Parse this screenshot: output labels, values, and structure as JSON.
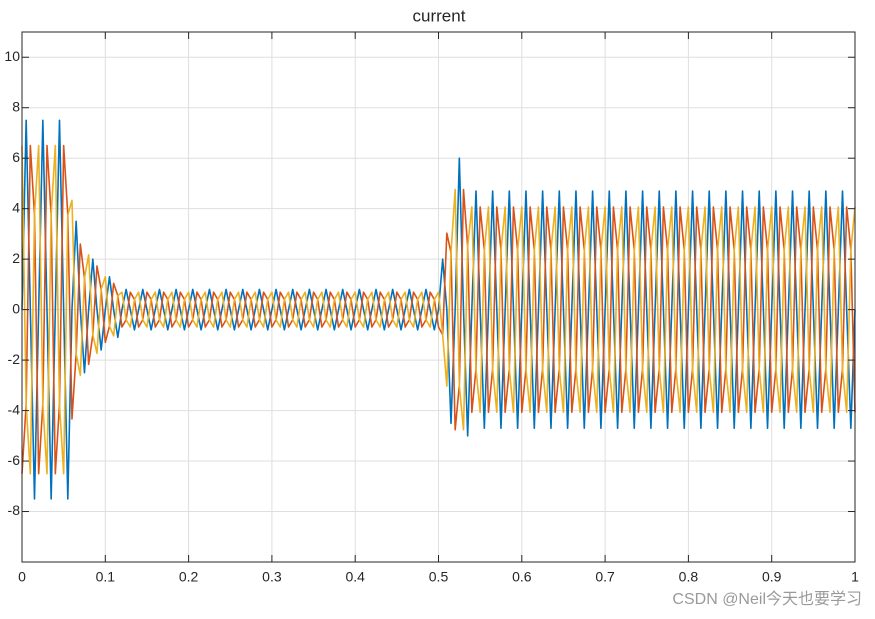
{
  "chart_data": {
    "type": "line",
    "title": "current",
    "x": [
      0,
      0.005,
      0.01,
      0.015,
      0.02,
      0.025,
      0.03,
      0.035,
      0.04,
      0.045,
      0.05,
      0.055,
      0.06,
      0.065,
      0.07,
      0.075,
      0.08,
      0.085,
      0.09,
      0.095,
      0.1,
      0.105,
      0.11,
      0.115,
      0.12,
      0.125,
      0.13,
      0.135,
      0.14,
      0.145,
      0.15,
      0.155,
      0.16,
      0.165,
      0.17,
      0.175,
      0.18,
      0.185,
      0.19,
      0.195,
      0.2,
      0.205,
      0.21,
      0.215,
      0.22,
      0.225,
      0.23,
      0.235,
      0.24,
      0.245,
      0.25,
      0.255,
      0.26,
      0.265,
      0.27,
      0.275,
      0.28,
      0.285,
      0.29,
      0.295,
      0.3,
      0.305,
      0.31,
      0.315,
      0.32,
      0.325,
      0.33,
      0.335,
      0.34,
      0.345,
      0.35,
      0.355,
      0.36,
      0.365,
      0.37,
      0.375,
      0.38,
      0.385,
      0.39,
      0.395,
      0.4,
      0.405,
      0.41,
      0.415,
      0.42,
      0.425,
      0.43,
      0.435,
      0.44,
      0.445,
      0.45,
      0.455,
      0.46,
      0.465,
      0.47,
      0.475,
      0.48,
      0.485,
      0.49,
      0.495,
      0.5,
      0.505,
      0.51,
      0.515,
      0.52,
      0.525,
      0.53,
      0.535,
      0.54,
      0.545,
      0.55,
      0.555,
      0.56,
      0.565,
      0.57,
      0.575,
      0.58,
      0.585,
      0.59,
      0.595,
      0.6,
      0.605,
      0.61,
      0.615,
      0.62,
      0.625,
      0.63,
      0.635,
      0.64,
      0.645,
      0.65,
      0.655,
      0.66,
      0.665,
      0.67,
      0.675,
      0.68,
      0.685,
      0.69,
      0.695,
      0.7,
      0.705,
      0.71,
      0.715,
      0.72,
      0.725,
      0.73,
      0.735,
      0.74,
      0.745,
      0.75,
      0.755,
      0.76,
      0.765,
      0.77,
      0.775,
      0.78,
      0.785,
      0.79,
      0.795,
      0.8,
      0.805,
      0.81,
      0.815,
      0.82,
      0.825,
      0.83,
      0.835,
      0.84,
      0.845,
      0.85,
      0.855,
      0.86,
      0.865,
      0.87,
      0.875,
      0.88,
      0.885,
      0.89,
      0.895,
      0.9,
      0.905,
      0.91,
      0.915,
      0.92,
      0.925,
      0.93,
      0.935,
      0.94,
      0.945,
      0.95,
      0.955,
      0.96,
      0.965,
      0.97,
      0.975,
      0.98,
      0.985,
      0.99,
      0.995,
      1
    ],
    "series": [
      {
        "color": "#0072BD",
        "values": [
          0,
          7.5,
          0,
          -7.5,
          0,
          7.5,
          0,
          -7.5,
          0,
          7.5,
          0,
          -7.5,
          0,
          3.5,
          0,
          -2.5,
          0,
          2,
          0,
          -1.6,
          0,
          1.3,
          0,
          -1.1,
          0,
          0.8,
          0,
          -0.8,
          0,
          0.8,
          0,
          -0.8,
          0,
          0.8,
          0,
          -0.8,
          0,
          0.8,
          0,
          -0.8,
          0,
          0.8,
          0,
          -0.8,
          0,
          0.8,
          0,
          -0.8,
          0,
          0.8,
          0,
          -0.8,
          0,
          0.8,
          0,
          -0.8,
          0,
          0.8,
          0,
          -0.8,
          0,
          0.8,
          0,
          -0.8,
          0,
          0.8,
          0,
          -0.8,
          0,
          0.8,
          0,
          -0.8,
          0,
          0.8,
          0,
          -0.8,
          0,
          0.8,
          0,
          -0.8,
          0,
          0.8,
          0,
          -0.8,
          0,
          0.8,
          0,
          -0.8,
          0,
          0.8,
          0,
          -0.8,
          0,
          0.8,
          0,
          -0.8,
          0,
          0.8,
          0,
          -0.8,
          0,
          2,
          0,
          -4.5,
          0,
          6,
          0,
          -5,
          0,
          4.7,
          0,
          -4.7,
          0,
          4.7,
          0,
          -4.7,
          0,
          4.7,
          0,
          -4.7,
          0,
          4.7,
          0,
          -4.7,
          0,
          4.7,
          0,
          -4.7,
          0,
          4.7,
          0,
          -4.7,
          0,
          4.7,
          0,
          -4.7,
          0,
          4.7,
          0,
          -4.7,
          0,
          4.7,
          0,
          -4.7,
          0,
          4.7,
          0,
          -4.7,
          0,
          4.7,
          0,
          -4.7,
          0,
          4.7,
          0,
          -4.7,
          0,
          4.7,
          0,
          -4.7,
          0,
          4.7,
          0,
          -4.7,
          0,
          4.7,
          0,
          -4.7,
          0,
          4.7,
          0,
          -4.7,
          0,
          4.7,
          0,
          -4.7,
          0,
          4.7,
          0,
          -4.7,
          0,
          4.7,
          0,
          -4.7,
          0,
          4.7,
          0,
          -4.7,
          0,
          4.7,
          0,
          -4.7,
          0,
          4.7,
          0,
          -4.7,
          0,
          4.7,
          0,
          -4.7,
          0
        ]
      },
      {
        "color": "#D95319",
        "values": [
          -6.5,
          -3.75,
          6.5,
          3.75,
          -6.5,
          -3.75,
          6.5,
          3.75,
          -6.5,
          -3.75,
          6.5,
          3.75,
          -4.33,
          -1.75,
          2.6,
          1.25,
          -2.17,
          -1,
          1.73,
          0.8,
          -1.3,
          -0.65,
          1.04,
          0.55,
          -0.69,
          -0.4,
          0.69,
          0.4,
          -0.69,
          -0.4,
          0.69,
          0.4,
          -0.69,
          -0.4,
          0.69,
          0.4,
          -0.69,
          -0.4,
          0.69,
          0.4,
          -0.69,
          -0.4,
          0.69,
          0.4,
          -0.69,
          -0.4,
          0.69,
          0.4,
          -0.69,
          -0.4,
          0.69,
          0.4,
          -0.69,
          -0.4,
          0.69,
          0.4,
          -0.69,
          -0.4,
          0.69,
          0.4,
          -0.69,
          -0.4,
          0.69,
          0.4,
          -0.69,
          -0.4,
          0.69,
          0.4,
          -0.69,
          -0.4,
          0.69,
          0.4,
          -0.69,
          -0.4,
          0.69,
          0.4,
          -0.69,
          -0.4,
          0.69,
          0.4,
          -0.69,
          -0.4,
          0.69,
          0.4,
          -0.69,
          -0.4,
          0.69,
          0.4,
          -0.69,
          -0.4,
          0.69,
          0.4,
          -0.69,
          -0.4,
          0.69,
          0.4,
          -0.69,
          -0.4,
          0.69,
          0.4,
          -0.69,
          -1,
          3.03,
          2.25,
          -4.76,
          -3,
          4.76,
          2.5,
          -4.07,
          -2.35,
          4.07,
          2.35,
          -4.07,
          -2.35,
          4.07,
          2.35,
          -4.07,
          -2.35,
          4.07,
          2.35,
          -4.07,
          -2.35,
          4.07,
          2.35,
          -4.07,
          -2.35,
          4.07,
          2.35,
          -4.07,
          -2.35,
          4.07,
          2.35,
          -4.07,
          -2.35,
          4.07,
          2.35,
          -4.07,
          -2.35,
          4.07,
          2.35,
          -4.07,
          -2.35,
          4.07,
          2.35,
          -4.07,
          -2.35,
          4.07,
          2.35,
          -4.07,
          -2.35,
          4.07,
          2.35,
          -4.07,
          -2.35,
          4.07,
          2.35,
          -4.07,
          -2.35,
          4.07,
          2.35,
          -4.07,
          -2.35,
          4.07,
          2.35,
          -4.07,
          -2.35,
          4.07,
          2.35,
          -4.07,
          -2.35,
          4.07,
          2.35,
          -4.07,
          -2.35,
          4.07,
          2.35,
          -4.07,
          -2.35,
          4.07,
          2.35,
          -4.07,
          -2.35,
          4.07,
          2.35,
          -4.07,
          -2.35,
          4.07,
          2.35,
          -4.07,
          -2.35,
          4.07,
          2.35,
          -4.07,
          -2.35,
          4.07,
          2.35,
          -4.07,
          -2.35,
          4.07,
          2.35,
          -4.07
        ]
      },
      {
        "color": "#EDB120",
        "values": [
          6.5,
          -3.75,
          -6.5,
          3.75,
          6.5,
          -3.75,
          -6.5,
          3.75,
          6.5,
          -3.75,
          -6.5,
          3.75,
          4.33,
          -1.75,
          -2.6,
          1.25,
          2.17,
          -1,
          -1.73,
          0.8,
          1.3,
          -0.65,
          -1.04,
          0.55,
          0.69,
          -0.4,
          -0.69,
          0.4,
          0.69,
          -0.4,
          -0.69,
          0.4,
          0.69,
          -0.4,
          -0.69,
          0.4,
          0.69,
          -0.4,
          -0.69,
          0.4,
          0.69,
          -0.4,
          -0.69,
          0.4,
          0.69,
          -0.4,
          -0.69,
          0.4,
          0.69,
          -0.4,
          -0.69,
          0.4,
          0.69,
          -0.4,
          -0.69,
          0.4,
          0.69,
          -0.4,
          -0.69,
          0.4,
          0.69,
          -0.4,
          -0.69,
          0.4,
          0.69,
          -0.4,
          -0.69,
          0.4,
          0.69,
          -0.4,
          -0.69,
          0.4,
          0.69,
          -0.4,
          -0.69,
          0.4,
          0.69,
          -0.4,
          -0.69,
          0.4,
          0.69,
          -0.4,
          -0.69,
          0.4,
          0.69,
          -0.4,
          -0.69,
          0.4,
          0.69,
          -0.4,
          -0.69,
          0.4,
          0.69,
          -0.4,
          -0.69,
          0.4,
          0.69,
          -0.4,
          -0.69,
          0.4,
          0.69,
          -1,
          -3.03,
          2.25,
          4.76,
          -3,
          -4.76,
          2.5,
          4.07,
          -2.35,
          -4.07,
          2.35,
          4.07,
          -2.35,
          -4.07,
          2.35,
          4.07,
          -2.35,
          -4.07,
          2.35,
          4.07,
          -2.35,
          -4.07,
          2.35,
          4.07,
          -2.35,
          -4.07,
          2.35,
          4.07,
          -2.35,
          -4.07,
          2.35,
          4.07,
          -2.35,
          -4.07,
          2.35,
          4.07,
          -2.35,
          -4.07,
          2.35,
          4.07,
          -2.35,
          -4.07,
          2.35,
          4.07,
          -2.35,
          -4.07,
          2.35,
          4.07,
          -2.35,
          -4.07,
          2.35,
          4.07,
          -2.35,
          -4.07,
          2.35,
          4.07,
          -2.35,
          -4.07,
          2.35,
          4.07,
          -2.35,
          -4.07,
          2.35,
          4.07,
          -2.35,
          -4.07,
          2.35,
          4.07,
          -2.35,
          -4.07,
          2.35,
          4.07,
          -2.35,
          -4.07,
          2.35,
          4.07,
          -2.35,
          -4.07,
          2.35,
          4.07,
          -2.35,
          -4.07,
          2.35,
          4.07,
          -2.35,
          -4.07,
          2.35,
          4.07,
          -2.35,
          -4.07,
          2.35,
          4.07,
          -2.35,
          -4.07,
          2.35,
          4.07,
          -2.35,
          -4.07,
          2.35,
          4.07
        ]
      }
    ],
    "xlim": [
      0,
      1
    ],
    "xticks": [
      0,
      0.1,
      0.2,
      0.3,
      0.4,
      0.5,
      0.6,
      0.7,
      0.8,
      0.9,
      1
    ],
    "ylim": [
      -10,
      11
    ],
    "yticks": [
      -8,
      -6,
      -4,
      -2,
      0,
      2,
      4,
      6,
      8,
      10
    ],
    "grid": true,
    "watermark": "CSDN @Neil今天也要学习"
  }
}
